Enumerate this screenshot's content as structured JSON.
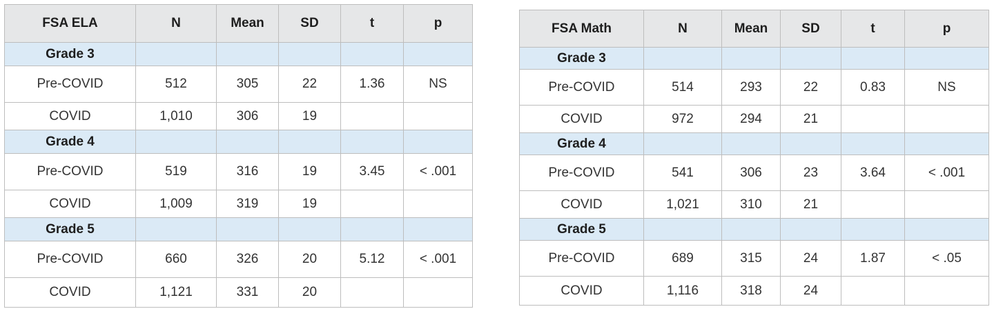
{
  "ela": {
    "headers": [
      "FSA ELA",
      "N",
      "Mean",
      "SD",
      "t",
      "p"
    ],
    "groups": [
      {
        "grade": "Grade 3",
        "rows": [
          [
            "Pre-COVID",
            "512",
            "305",
            "22",
            "1.36",
            "NS"
          ],
          [
            "COVID",
            "1,010",
            "306",
            "19",
            "",
            ""
          ]
        ]
      },
      {
        "grade": "Grade 4",
        "rows": [
          [
            "Pre-COVID",
            "519",
            "316",
            "19",
            "3.45",
            "< .001"
          ],
          [
            "COVID",
            "1,009",
            "319",
            "19",
            "",
            ""
          ]
        ]
      },
      {
        "grade": "Grade 5",
        "rows": [
          [
            "Pre-COVID",
            "660",
            "326",
            "20",
            "5.12",
            "< .001"
          ],
          [
            "COVID",
            "1,121",
            "331",
            "20",
            "",
            ""
          ]
        ]
      }
    ]
  },
  "math": {
    "headers": [
      "FSA Math",
      "N",
      "Mean",
      "SD",
      "t",
      "p"
    ],
    "groups": [
      {
        "grade": "Grade 3",
        "rows": [
          [
            "Pre-COVID",
            "514",
            "293",
            "22",
            "0.83",
            "NS"
          ],
          [
            "COVID",
            "972",
            "294",
            "21",
            "",
            ""
          ]
        ]
      },
      {
        "grade": "Grade 4",
        "rows": [
          [
            "Pre-COVID",
            "541",
            "306",
            "23",
            "3.64",
            "< .001"
          ],
          [
            "COVID",
            "1,021",
            "310",
            "21",
            "",
            ""
          ]
        ]
      },
      {
        "grade": "Grade 5",
        "rows": [
          [
            "Pre-COVID",
            "689",
            "315",
            "24",
            "1.87",
            "< .05"
          ],
          [
            "COVID",
            "1,116",
            "318",
            "24",
            "",
            ""
          ]
        ]
      }
    ]
  }
}
